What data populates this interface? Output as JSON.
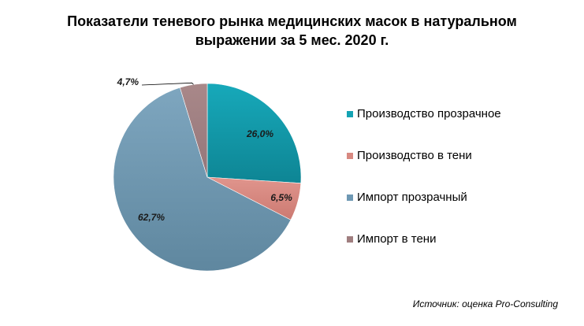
{
  "chart_data": {
    "type": "pie",
    "title": [
      "Показатели теневого рынка медицинских масок в натуральном",
      "выражении за 5 мес. 2020 г."
    ],
    "slices": [
      {
        "label": "Производство прозрачное",
        "value": 26.0,
        "display": "26,0%",
        "color": "#14A3B3"
      },
      {
        "label": "Производство в тени",
        "value": 6.5,
        "display": "6,5%",
        "color": "#D88981"
      },
      {
        "label": "Импорт прозрачный",
        "value": 62.7,
        "display": "62,7%",
        "color": "#6E98B3"
      },
      {
        "label": "Импорт в тени",
        "value": 4.7,
        "display": "4,7%",
        "color": "#A07E7F"
      }
    ],
    "legend_placement": "right",
    "source": "Источник: оценка Pro-Consulting"
  }
}
